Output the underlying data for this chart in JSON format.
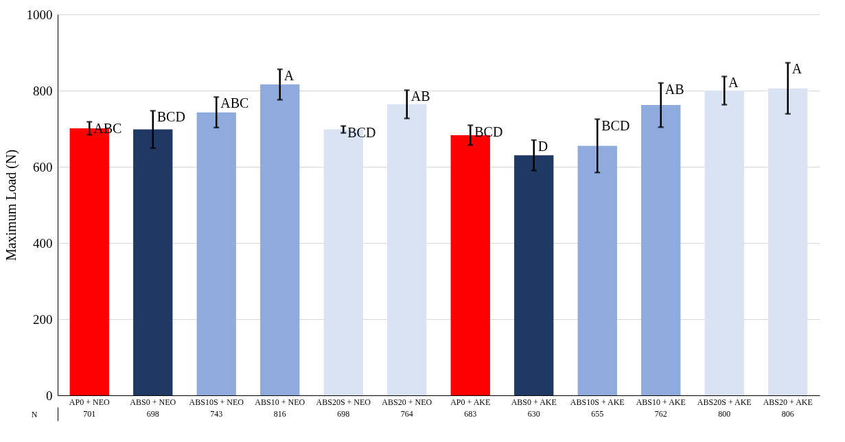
{
  "chart_data": {
    "type": "bar",
    "ylabel": "Maximum Load (N)",
    "categories": [
      "AP0 + NEO",
      "ABS0 + NEO",
      "ABS10S + NEO",
      "ABS10 + NEO",
      "ABS20S + NEO",
      "ABS20 + NEO",
      "AP0 + AKE",
      "ABS0 + AKE",
      "ABS10S + AKE",
      "ABS10 + AKE",
      "ABS20S + AKE",
      "ABS20 + AKE"
    ],
    "values": [
      701,
      698,
      743,
      816,
      698,
      764,
      683,
      630,
      655,
      762,
      800,
      806
    ],
    "colors": [
      "#ff0000",
      "#203864",
      "#8faadc",
      "#8faadc",
      "#dae3f3",
      "#dae3f3",
      "#ff0000",
      "#203864",
      "#8faadc",
      "#8faadc",
      "#dae3f3",
      "#dae3f3"
    ],
    "errors": [
      17,
      49,
      40,
      40,
      9,
      37,
      26,
      40,
      70,
      58,
      37,
      67
    ],
    "ylim": [
      0,
      1000
    ],
    "yticks": [
      0,
      200,
      400,
      600,
      800,
      1000
    ],
    "grid": "y",
    "data_labels": true,
    "annotations": [
      {
        "text": "ABC",
        "x": "AP0 + NEO",
        "y": 718
      },
      {
        "text": "BCD",
        "x": "ABS0 + NEO",
        "y": 747
      },
      {
        "text": "ABC",
        "x": "ABS10S + NEO",
        "y": 783
      },
      {
        "text": "A",
        "x": "ABS10 + NEO",
        "y": 856
      },
      {
        "text": "BCD",
        "x": "ABS20S + NEO",
        "y": 707
      },
      {
        "text": "AB",
        "x": "ABS20 + NEO",
        "y": 801
      },
      {
        "text": "BCD",
        "x": "AP0 + AKE",
        "y": 709
      },
      {
        "text": "D",
        "x": "ABS0 + AKE",
        "y": 670
      },
      {
        "text": "BCD",
        "x": "ABS10S + AKE",
        "y": 725
      },
      {
        "text": "AB",
        "x": "ABS10 + AKE",
        "y": 820
      },
      {
        "text": "A",
        "x": "ABS20S + AKE",
        "y": 837
      },
      {
        "text": "A",
        "x": "ABS20 + AKE",
        "y": 873
      },
      "N"
    ]
  }
}
